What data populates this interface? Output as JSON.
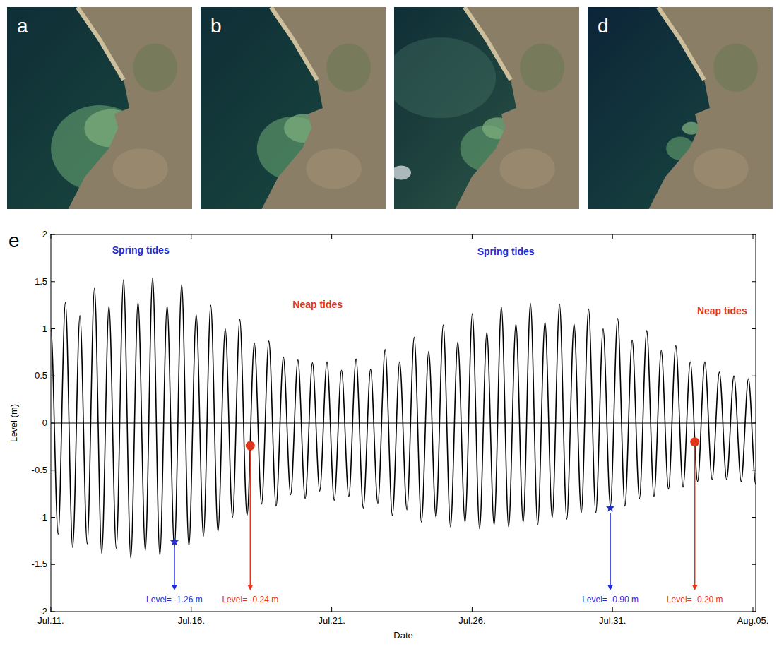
{
  "panels": [
    {
      "label": "a"
    },
    {
      "label": "b"
    },
    {
      "label": null
    },
    {
      "label": "d"
    }
  ],
  "chart_data": {
    "type": "line",
    "label": "e",
    "x_label": "Date",
    "y_label": "Level (m)",
    "xlim": [
      11,
      36.1
    ],
    "ylim": [
      -2,
      2
    ],
    "xticks": [
      {
        "value": 11,
        "label": "Jul.11."
      },
      {
        "value": 16,
        "label": "Jul.16."
      },
      {
        "value": 21,
        "label": "Jul.21."
      },
      {
        "value": 26,
        "label": "Jul.26."
      },
      {
        "value": 31,
        "label": "Jul.31."
      },
      {
        "value": 36,
        "label": "Aug.05."
      }
    ],
    "yticks": [
      -2,
      -1.5,
      -1,
      -0.5,
      0,
      0.5,
      1,
      1.5,
      2
    ],
    "grid": false,
    "reference_lines": [
      0
    ],
    "x": [
      11.0,
      11.259,
      11.518,
      11.776,
      12.035,
      12.294,
      12.553,
      12.811,
      13.07,
      13.329,
      13.588,
      13.846,
      14.105,
      14.364,
      14.623,
      14.881,
      15.14,
      15.399,
      15.658,
      15.916,
      16.175,
      16.434,
      16.693,
      16.951,
      17.21,
      17.469,
      17.728,
      17.986,
      18.245,
      18.504,
      18.763,
      19.021,
      19.28,
      19.539,
      19.798,
      20.056,
      20.315,
      20.574,
      20.833,
      21.091,
      21.35,
      21.609,
      21.868,
      22.126,
      22.385,
      22.644,
      22.903,
      23.161,
      23.42,
      23.679,
      23.938,
      24.196,
      24.455,
      24.714,
      24.973,
      25.231,
      25.49,
      25.749,
      26.008,
      26.266,
      26.525,
      26.784,
      27.043,
      27.301,
      27.56,
      27.819,
      28.078,
      28.336,
      28.595,
      28.854,
      29.113,
      29.371,
      29.63,
      29.889,
      30.148,
      30.406,
      30.665,
      30.924,
      31.183,
      31.441,
      31.7,
      31.959,
      32.218,
      32.476,
      32.735,
      32.994,
      33.253,
      33.511,
      33.77,
      34.029,
      34.288,
      34.546,
      34.805,
      35.064,
      35.323,
      35.581,
      35.84,
      36.099
    ],
    "series": [
      {
        "color": "#000000",
        "line_style": "solid",
        "values": [
          1.0,
          -1.18,
          1.28,
          -1.32,
          1.14,
          -1.28,
          1.43,
          -1.38,
          1.24,
          -1.33,
          1.52,
          -1.43,
          1.28,
          -1.35,
          1.54,
          -1.4,
          1.24,
          -1.32,
          1.47,
          -1.3,
          1.15,
          -1.2,
          1.25,
          -1.15,
          1.0,
          -1.0,
          1.1,
          -0.98,
          0.85,
          -0.86,
          0.87,
          -0.88,
          0.7,
          -0.76,
          0.67,
          -0.8,
          0.64,
          -0.72,
          0.65,
          -0.82,
          0.56,
          -0.78,
          0.68,
          -0.9,
          0.57,
          -0.85,
          0.78,
          -0.98,
          0.65,
          -0.92,
          0.91,
          -1.05,
          0.76,
          -1.0,
          1.04,
          -1.1,
          0.86,
          -1.05,
          1.16,
          -1.12,
          0.96,
          -1.08,
          1.23,
          -1.1,
          1.05,
          -1.05,
          1.27,
          -1.08,
          1.07,
          -1.0,
          1.26,
          -1.02,
          1.05,
          -0.95,
          1.21,
          -0.95,
          1.0,
          -0.88,
          1.11,
          -0.88,
          0.88,
          -0.8,
          0.98,
          -0.78,
          0.77,
          -0.7,
          0.82,
          -0.68,
          0.65,
          -0.62,
          0.65,
          -0.6,
          0.54,
          -0.6,
          0.5,
          -0.62,
          0.47,
          -0.65
        ]
      }
    ],
    "annotations": [
      {
        "text": "Spring tides",
        "x": 14.2,
        "y": 1.8,
        "color": "#1f2bd6"
      },
      {
        "text": "Neap tides",
        "x": 20.5,
        "y": 1.22,
        "color": "#e0361a"
      },
      {
        "text": "Spring tides",
        "x": 27.2,
        "y": 1.78,
        "color": "#1f2bd6"
      },
      {
        "text": "Neap tides",
        "x": 34.9,
        "y": 1.15,
        "color": "#e0361a"
      }
    ],
    "markers": [
      {
        "x": 15.4,
        "y": -1.26,
        "marker": "star",
        "color": "#1f2bd6",
        "label": "Level= -1.26 m"
      },
      {
        "x": 18.1,
        "y": -0.24,
        "marker": "circle",
        "color": "#e0361a",
        "label": "Level= -0.24 m"
      },
      {
        "x": 30.92,
        "y": -0.9,
        "marker": "star",
        "color": "#1f2bd6",
        "label": "Level= -0.90 m"
      },
      {
        "x": 33.93,
        "y": -0.2,
        "marker": "circle",
        "color": "#e0361a",
        "label": "Level= -0.20 m"
      }
    ]
  }
}
